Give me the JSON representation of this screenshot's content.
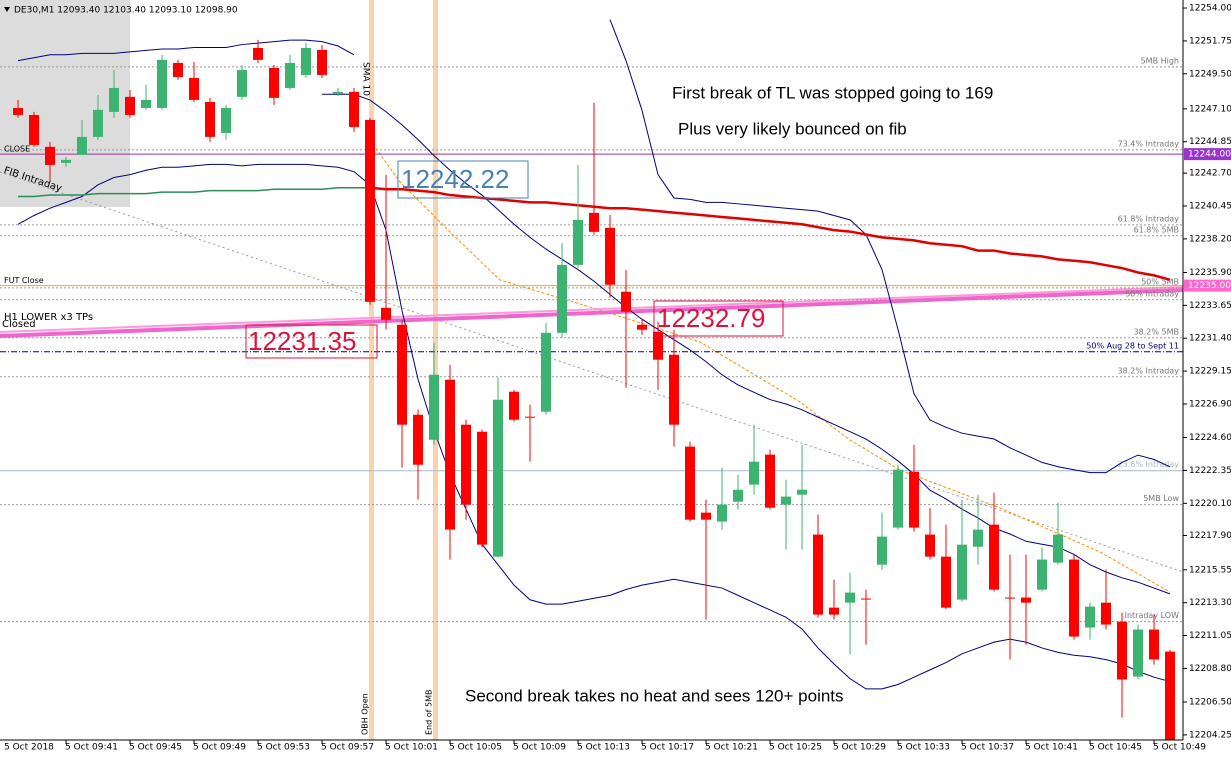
{
  "header": "DE30,M1  12093.40 12103.40 12093.10 12098.90",
  "chart_data": {
    "type": "candlestick",
    "date_label": "5 Oct 2018",
    "categories": [
      null,
      null,
      null,
      "5 Oct 09:41",
      null,
      null,
      null,
      "5 Oct 09:45",
      null,
      null,
      null,
      "5 Oct 09:49",
      null,
      null,
      null,
      "5 Oct 09:53",
      null,
      null,
      null,
      "5 Oct 09:57",
      null,
      null,
      null,
      "5 Oct 10:01",
      null,
      null,
      null,
      "5 Oct 10:05",
      null,
      null,
      null,
      "5 Oct 10:09",
      null,
      null,
      null,
      "5 Oct 10:13",
      null,
      null,
      null,
      "5 Oct 10:17",
      null,
      null,
      null,
      "5 Oct 10:21",
      null,
      null,
      null,
      "5 Oct 10:25",
      null,
      null,
      null,
      "5 Oct 10:29",
      null,
      null,
      null,
      "5 Oct 10:33",
      null,
      null,
      null,
      "5 Oct 10:37",
      null,
      null,
      null,
      "5 Oct 10:41",
      null,
      null,
      null,
      "5 Oct 10:45",
      null,
      null,
      null,
      "5 Oct 10:49",
      null
    ],
    "open": [
      12247.16,
      12246.68,
      12244.5,
      12243.4,
      12243.95,
      12245.18,
      12246.89,
      12247.92,
      12247.16,
      12247.16,
      12250.24,
      12249.21,
      12247.57,
      12245.45,
      12247.92,
      12251.27,
      12249.9,
      12248.53,
      12249.42,
      12251.13,
      12248.12,
      12248.26,
      12246.34,
      12233.48,
      12232.32,
      12226.16,
      12224.45,
      12228.56,
      12225.48,
      12225.0,
      12216.45,
      12227.74,
      12226.03,
      12226.37,
      12231.77,
      12236.42,
      12239.98,
      12238.96,
      12234.58,
      12232.32,
      12231.84,
      12230.27,
      12223.98,
      12219.46,
      12218.85,
      12220.21,
      12221.38,
      12223.43,
      12220.01,
      12220.69,
      12217.96,
      12212.96,
      12213.3,
      12213.58,
      12215.9,
      12218.44,
      12222.26,
      12217.96,
      12216.45,
      12213.51,
      12217.13,
      12218.64,
      12213.65,
      12213.65,
      12214.19,
      12216.04,
      12216.25,
      12211.6,
      12213.3,
      12212.0,
      12208.24,
      12211.46,
      12209.95
    ],
    "high": [
      12247.71,
      12246.89,
      12244.84,
      12243.81,
      12246.34,
      12248.05,
      12249.76,
      12248.39,
      12248.74,
      12250.79,
      12250.45,
      12250.31,
      12247.85,
      12247.37,
      12250.1,
      12251.81,
      12250.1,
      12250.79,
      12251.61,
      12251.47,
      12248.53,
      12248.53,
      12246.48,
      12242.58,
      12232.66,
      12226.51,
      12231.09,
      12229.58,
      12225.82,
      12225.14,
      12228.7,
      12227.87,
      12226.85,
      12232.46,
      12237.93,
      12243.26,
      12247.5,
      12239.84,
      12236.08,
      12232.66,
      12232.53,
      12231.98,
      12224.32,
      12220.35,
      12222.54,
      12222.06,
      12225.48,
      12223.77,
      12221.72,
      12224.11,
      12219.33,
      12214.88,
      12215.36,
      12214.19,
      12219.46,
      12222.74,
      12224.11,
      12219.8,
      12218.64,
      12220.35,
      12220.69,
      12220.83,
      12216.59,
      12216.59,
      12217.07,
      12220.15,
      12216.59,
      12213.3,
      12215.56,
      12212.62,
      12211.8,
      12212.48,
      12210.09
    ],
    "low": [
      12246.48,
      12244.5,
      12242.24,
      12243.13,
      12243.95,
      12244.97,
      12246.48,
      12246.48,
      12247.03,
      12247.03,
      12249.08,
      12247.57,
      12244.84,
      12244.97,
      12247.71,
      12250.24,
      12247.37,
      12248.39,
      12249.21,
      12249.21,
      12247.98,
      12245.52,
      12233.69,
      12231.98,
      12222.54,
      12220.35,
      12224.11,
      12216.25,
      12218.98,
      12217.07,
      12216.38,
      12225.68,
      12222.95,
      12226.16,
      12231.43,
      12236.22,
      12238.48,
      12234.17,
      12228.01,
      12231.64,
      12227.87,
      12223.98,
      12218.85,
      12212.14,
      12218.3,
      12219.67,
      12220.69,
      12219.67,
      12216.93,
      12216.93,
      12212.28,
      12212.14,
      12209.75,
      12210.43,
      12215.56,
      12218.3,
      12218.16,
      12216.25,
      12212.83,
      12213.37,
      12215.9,
      12214.06,
      12209.41,
      12210.43,
      12214.06,
      12215.9,
      12210.77,
      12210.77,
      12211.46,
      12205.44,
      12208.04,
      12209.06,
      12203.93
    ],
    "close": [
      12246.68,
      12244.63,
      12243.26,
      12243.61,
      12245.18,
      12247.03,
      12248.53,
      12246.68,
      12247.71,
      12250.45,
      12249.28,
      12247.71,
      12245.18,
      12247.16,
      12249.76,
      12250.45,
      12247.85,
      12250.24,
      12251.27,
      12249.42,
      12248.26,
      12245.86,
      12233.89,
      12232.66,
      12225.48,
      12222.74,
      12228.9,
      12218.3,
      12220.01,
      12217.27,
      12227.19,
      12225.82,
      12225.96,
      12231.77,
      12236.42,
      12239.5,
      12238.68,
      12235.06,
      12233.21,
      12231.98,
      12229.93,
      12225.48,
      12218.98,
      12218.98,
      12220.01,
      12221.03,
      12222.95,
      12219.8,
      12220.56,
      12221.03,
      12212.48,
      12212.48,
      12213.99,
      12213.51,
      12217.82,
      12222.4,
      12218.44,
      12216.45,
      12212.96,
      12217.27,
      12218.3,
      12214.19,
      12213.58,
      12213.3,
      12216.25,
      12217.96,
      12210.98,
      12213.03,
      12211.8,
      12208.04,
      12211.46,
      12209.41,
      12203.93
    ],
    "up_color": "#3cb371",
    "down_color": "#ff0000",
    "overlays": [
      {
        "color": "#000080",
        "width": 1,
        "values": [
          12250.4,
          12250.6,
          12250.8,
          12250.8,
          12250.9,
          12250.9,
          12250.9,
          12251.0,
          12251.1,
          12251.2,
          12251.2,
          12251.3,
          12251.3,
          12251.3,
          12251.5,
          12251.6,
          12251.7,
          12251.8,
          12251.8,
          12251.7,
          12251.4,
          12250.8,
          null,
          null,
          null,
          null,
          null,
          null,
          null,
          null,
          null,
          null,
          null,
          null,
          null,
          null,
          null,
          12253.2,
          12250.4,
          12247.0,
          12242.6,
          12241.0,
          12240.9,
          12240.7,
          12240.7,
          12240.6,
          12240.5,
          12240.4,
          12240.3,
          12240.2,
          12240.1,
          12239.8,
          12239.5,
          12238.5,
          12236.1,
          12232.0,
          12227.6,
          12225.8,
          12225.3,
          12224.9,
          12224.7,
          12224.5,
          12223.9,
          12223.4,
          12222.9,
          12222.6,
          12222.4,
          12222.2,
          12222.2,
          12222.9,
          12223.4,
          12223.1,
          12222.6
        ]
      },
      {
        "color": "#000080",
        "width": 1,
        "values": [
          null,
          null,
          null,
          null,
          null,
          null,
          null,
          null,
          null,
          null,
          null,
          null,
          null,
          null,
          null,
          null,
          null,
          null,
          null,
          12248.1,
          12248.1,
          12248.1,
          12247.7,
          12246.9,
          12246.0,
          12245.0,
          12243.9,
          12242.9,
          12242.0,
          12241.2,
          12240.2,
          12239.2,
          12238.3,
          12237.5,
          12236.8,
          12236.1,
          12235.3,
          12234.4,
          12233.5,
          12232.7,
          12232.0,
          12231.3,
          12230.6,
          12229.8,
          12228.9,
          12228.2,
          12227.7,
          12227.2,
          12226.9,
          12226.5,
          12226.0,
          12225.5,
          12225.0,
          12224.5,
          12223.8,
          12223.0,
          12222.1,
          12221.0,
          12220.4,
          12219.7,
          12219.1,
          12218.4,
          12218.0,
          12217.5,
          12217.3,
          12217.1,
          12216.6,
          12215.9,
          12215.4,
          12215.0,
          12214.7,
          12214.3,
          12213.9
        ]
      },
      {
        "color": "#000080",
        "width": 1,
        "values": [
          12239.2,
          12239.8,
          12240.3,
          12240.7,
          12241.1,
          12241.9,
          12242.4,
          12242.6,
          12242.9,
          12243.1,
          12243.1,
          12243.2,
          12243.3,
          12243.3,
          12243.2,
          12243.3,
          12243.3,
          12243.3,
          12243.3,
          12243.2,
          12243.1,
          12242.8,
          12241.9,
          12238.8,
          12233.3,
          12228.6,
          12225.1,
          12222.1,
          12219.7,
          12217.3,
          12215.9,
          12214.5,
          12213.5,
          12213.2,
          12213.2,
          12213.4,
          12213.6,
          12213.8,
          12214.2,
          12214.5,
          12214.7,
          12214.9,
          12214.7,
          12214.5,
          12214.3,
          12213.8,
          12213.3,
          12212.8,
          12212.3,
          12211.5,
          12210.2,
          12209.1,
          12208.1,
          12207.4,
          12207.4,
          12207.7,
          12208.2,
          12208.7,
          12209.2,
          12209.8,
          12210.2,
          12210.6,
          12210.8,
          12210.6,
          12210.2,
          12209.9,
          12209.7,
          12209.6,
          12209.4,
          12209.1,
          12208.6,
          12208.2,
          12207.9
        ]
      },
      {
        "color": "#e00000",
        "width": 2.5,
        "values": [
          null,
          null,
          null,
          null,
          null,
          null,
          null,
          null,
          null,
          null,
          null,
          null,
          null,
          null,
          null,
          null,
          null,
          null,
          null,
          null,
          null,
          null,
          12241.7,
          12241.6,
          12241.6,
          12241.5,
          12241.4,
          12241.2,
          12241.1,
          12241.0,
          12240.9,
          12240.8,
          12240.7,
          12240.7,
          12240.6,
          12240.5,
          12240.4,
          12240.3,
          12240.3,
          12240.2,
          12240.1,
          12240.0,
          12239.9,
          12239.8,
          12239.7,
          12239.6,
          12239.5,
          12239.4,
          12239.3,
          12239.2,
          12239.0,
          12238.8,
          12238.7,
          12238.5,
          12238.3,
          12238.2,
          12238.1,
          12237.9,
          12237.8,
          12237.7,
          12237.4,
          12237.4,
          12237.2,
          12237.1,
          12237.0,
          12236.8,
          12236.7,
          12236.6,
          12236.4,
          12236.2,
          12235.9,
          12235.7,
          12235.4
        ]
      },
      {
        "color": "#2e8b57",
        "width": 1.5,
        "values": [
          12241.1,
          12241.1,
          12241.2,
          12241.2,
          12241.2,
          12241.3,
          12241.3,
          12241.3,
          12241.3,
          12241.4,
          12241.4,
          12241.4,
          12241.5,
          12241.5,
          12241.5,
          12241.5,
          12241.6,
          12241.6,
          12241.6,
          12241.6,
          12241.7,
          12241.7,
          12241.7,
          null,
          null,
          null,
          null,
          null,
          null,
          null,
          null,
          null,
          null,
          null,
          null,
          null,
          null,
          null,
          null,
          null,
          null,
          null,
          null,
          null,
          null,
          null,
          null,
          null,
          null,
          null,
          null,
          null,
          null,
          null,
          null,
          null,
          null,
          null,
          null,
          null,
          null,
          null,
          null,
          null,
          null,
          null,
          null,
          null,
          null,
          null,
          null,
          null,
          null
        ]
      }
    ],
    "levels": [
      {
        "value": 12249.97,
        "label": "5MB High",
        "color": "#999999",
        "style": "dotted"
      },
      {
        "value": 12244.29,
        "label": "73.4% Intraday",
        "color": "#999999",
        "style": "dotted"
      },
      {
        "value": 12239.16,
        "label": "61.8% Intraday",
        "color": "#999999",
        "style": "dotted"
      },
      {
        "value": 12238.41,
        "label": "61.8% 5MB",
        "color": "#999999",
        "style": "dotted"
      },
      {
        "value": 12234.85,
        "label": "50% 5MB",
        "color": "#999999",
        "style": "dotted"
      },
      {
        "value": 12234.03,
        "label": "50% Intraday",
        "color": "#999999",
        "style": "dotted"
      },
      {
        "value": 12231.43,
        "label": "38.2% 5MB",
        "color": "#999999",
        "style": "dotted"
      },
      {
        "value": 12230.47,
        "label": "50%   Aug 28 to Sept 11",
        "color": "#000080",
        "style": "dashdot"
      },
      {
        "value": 12228.76,
        "label": "38.2% Intraday",
        "color": "#999999",
        "style": "dotted"
      },
      {
        "value": 12222.33,
        "label": "23.6% Intraday",
        "color": "#a8b8c8",
        "style": "solid"
      },
      {
        "value": 12220.01,
        "label": "5MB Low",
        "color": "#999999",
        "style": "dotted"
      },
      {
        "value": 12212.0,
        "label": "Intraday LOW",
        "color": "#999999",
        "style": "dotted"
      }
    ],
    "lines": [
      {
        "value": 12244.0,
        "text": "CLOSE",
        "color": "#993399"
      },
      {
        "value": 12235.0,
        "text": "FUT Close",
        "color": "#ffa500"
      }
    ],
    "price_tags": [
      {
        "value": 12244.0,
        "label": "12244.00",
        "color": "#9933cc"
      },
      {
        "value": 12235.0,
        "label": "12235.00",
        "color": "#ff66cc"
      }
    ],
    "texts": [
      "FIB Intraday",
      "H1 LOWER x3 TPs",
      "Closed",
      "SMA 10",
      "OBH Open",
      "End of 5MB"
    ],
    "callouts": [
      12242.22,
      12231.35,
      12232.79
    ],
    "annotations": [
      "First break of TL was stopped going to 169",
      "Plus very likely bounced on fib",
      "Second break takes no heat and sees 120+ points"
    ],
    "ylim": [
      12203.9,
      12254.55
    ],
    "yticks": [
      {
        "value": 12254,
        "label": "12254.00"
      },
      12251.75,
      {
        "value": 12249.5,
        "label": "12249.50"
      },
      {
        "value": 12247.1,
        "label": "12247.10"
      },
      12244.85,
      {
        "value": 12242.7,
        "label": "12242.70"
      },
      12240.45,
      {
        "value": 12238.2,
        "label": "12238.20"
      },
      {
        "value": 12235.9,
        "label": "12235.90"
      },
      12233.65,
      {
        "value": 12231.4,
        "label": "12231.40"
      },
      12229.15,
      {
        "value": 12226.9,
        "label": "12226.90"
      },
      {
        "value": 12224.6,
        "label": "12224.60"
      },
      12222.35,
      {
        "value": 12220.1,
        "label": "12220.10"
      },
      {
        "value": 12217.9,
        "label": "12217.90"
      },
      12215.55,
      {
        "value": 12213.3,
        "label": "12213.30"
      },
      12211.05,
      {
        "value": 12208.8,
        "label": "12208.80"
      },
      {
        "value": 12206.5,
        "label": "12206.50"
      },
      12204.25
    ],
    "grid": false
  }
}
